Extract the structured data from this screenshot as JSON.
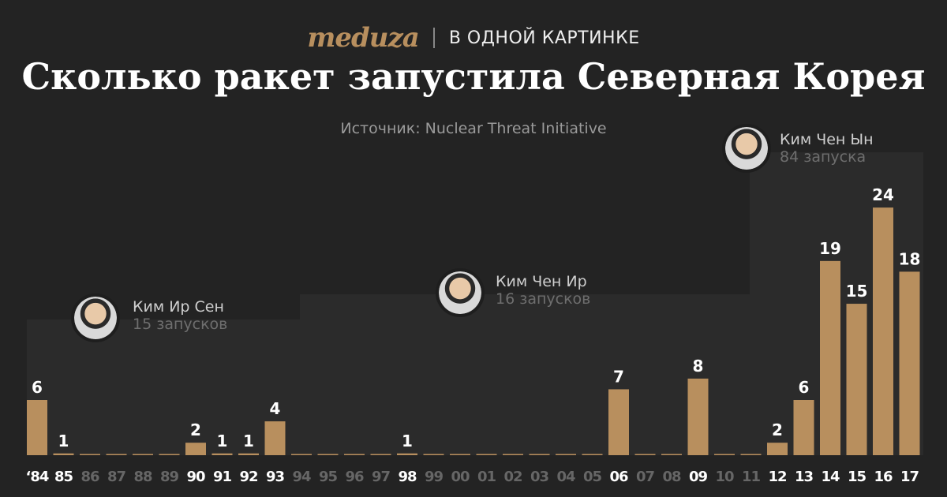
{
  "header": {
    "logo": "meduza",
    "rubric": "В ОДНОЙ КАРТИНКЕ",
    "title": "Сколько ракет запустила Северная Корея",
    "source": "Источник: Nuclear Threat Initiative"
  },
  "colors": {
    "background": "#232323",
    "panel": "#2b2b2b",
    "bar": "#b88f5e",
    "tick_active": "#ffffff",
    "tick_zero": "#666666"
  },
  "leaders": [
    {
      "name": "Ким Ир Сен",
      "count": "15 запусков",
      "from": "'84",
      "to": "93"
    },
    {
      "name": "Ким Чен Ир",
      "count": "16 запусков",
      "from": "94",
      "to": "11"
    },
    {
      "name": "Ким Чен Ын",
      "count": "84 запуска",
      "from": "12",
      "to": "17"
    }
  ],
  "chart_data": {
    "type": "bar",
    "title": "Сколько ракет запустила Северная Корея",
    "categories": [
      "‘84",
      "85",
      "86",
      "87",
      "88",
      "89",
      "90",
      "91",
      "92",
      "93",
      "94",
      "95",
      "96",
      "97",
      "98",
      "99",
      "00",
      "01",
      "02",
      "03",
      "04",
      "05",
      "06",
      "07",
      "08",
      "09",
      "10",
      "11",
      "12",
      "13",
      "14",
      "15",
      "16",
      "17"
    ],
    "values": [
      6,
      1,
      0,
      0,
      0,
      0,
      2,
      1,
      1,
      4,
      0,
      0,
      0,
      0,
      1,
      0,
      0,
      0,
      0,
      0,
      0,
      0,
      7,
      0,
      0,
      8,
      0,
      0,
      2,
      6,
      19,
      15,
      24,
      18
    ],
    "xlabel": "",
    "ylabel": "",
    "grid": false,
    "data_labels": "nonzero"
  }
}
